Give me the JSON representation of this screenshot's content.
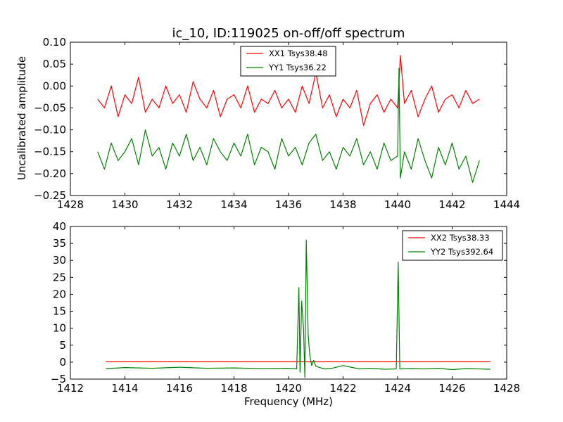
{
  "colors": {
    "xx": "#ff0000",
    "yy": "#008000",
    "axes": "#000000",
    "background": "#ffffff"
  },
  "chart_data": [
    {
      "type": "line",
      "title": "ic_10, ID:119025 on-off/off spectrum",
      "xlabel": "",
      "ylabel": "Uncalibrated amplitude",
      "xlim": [
        1428,
        1444
      ],
      "ylim": [
        -0.25,
        0.1
      ],
      "x_tick_labels": [
        "1428",
        "1430",
        "1432",
        "1434",
        "1436",
        "1438",
        "1440",
        "1442",
        "1444"
      ],
      "y_tick_labels": [
        "−0.25",
        "−0.20",
        "−0.15",
        "−0.10",
        "−0.05",
        "0.00",
        "0.05",
        "0.10"
      ],
      "legend_position": "upper-center",
      "grid": false,
      "series": [
        {
          "name": "XX1 Tsys38.48",
          "color": "#ff0000",
          "x": [
            1429.0,
            1429.25,
            1429.5,
            1429.75,
            1430.0,
            1430.25,
            1430.5,
            1430.75,
            1431.0,
            1431.25,
            1431.5,
            1431.75,
            1432.0,
            1432.25,
            1432.5,
            1432.75,
            1433.0,
            1433.25,
            1433.5,
            1433.75,
            1434.0,
            1434.25,
            1434.5,
            1434.75,
            1435.0,
            1435.25,
            1435.5,
            1435.75,
            1436.0,
            1436.25,
            1436.5,
            1436.75,
            1437.0,
            1437.25,
            1437.5,
            1437.75,
            1438.0,
            1438.25,
            1438.5,
            1438.75,
            1439.0,
            1439.25,
            1439.5,
            1439.75,
            1440.0,
            1440.1,
            1440.25,
            1440.5,
            1440.75,
            1441.0,
            1441.25,
            1441.5,
            1441.75,
            1442.0,
            1442.25,
            1442.5,
            1442.75,
            1443.0
          ],
          "y": [
            -0.03,
            -0.05,
            0.0,
            -0.07,
            -0.02,
            -0.04,
            0.02,
            -0.06,
            -0.03,
            -0.05,
            0.0,
            -0.04,
            -0.02,
            -0.06,
            0.01,
            -0.03,
            -0.05,
            -0.01,
            -0.07,
            -0.03,
            -0.02,
            -0.05,
            0.0,
            -0.06,
            -0.03,
            -0.04,
            -0.01,
            -0.05,
            -0.03,
            -0.06,
            0.0,
            -0.04,
            0.03,
            -0.05,
            -0.02,
            -0.07,
            -0.03,
            -0.05,
            -0.01,
            -0.09,
            -0.04,
            -0.02,
            -0.06,
            -0.03,
            -0.05,
            0.07,
            -0.04,
            -0.01,
            -0.07,
            -0.03,
            0.0,
            -0.06,
            -0.03,
            -0.02,
            -0.05,
            -0.01,
            -0.04,
            -0.03
          ]
        },
        {
          "name": "YY1 Tsys36.22",
          "color": "#008000",
          "x": [
            1429.0,
            1429.25,
            1429.5,
            1429.75,
            1430.0,
            1430.25,
            1430.5,
            1430.75,
            1431.0,
            1431.25,
            1431.5,
            1431.75,
            1432.0,
            1432.25,
            1432.5,
            1432.75,
            1433.0,
            1433.25,
            1433.5,
            1433.75,
            1434.0,
            1434.25,
            1434.5,
            1434.75,
            1435.0,
            1435.25,
            1435.5,
            1435.75,
            1436.0,
            1436.25,
            1436.5,
            1436.75,
            1437.0,
            1437.25,
            1437.5,
            1437.75,
            1438.0,
            1438.25,
            1438.5,
            1438.75,
            1439.0,
            1439.25,
            1439.5,
            1439.75,
            1440.0,
            1440.05,
            1440.1,
            1440.25,
            1440.5,
            1440.75,
            1441.0,
            1441.25,
            1441.5,
            1441.75,
            1442.0,
            1442.25,
            1442.5,
            1442.75,
            1443.0
          ],
          "y": [
            -0.15,
            -0.19,
            -0.13,
            -0.17,
            -0.15,
            -0.12,
            -0.18,
            -0.1,
            -0.16,
            -0.14,
            -0.19,
            -0.13,
            -0.16,
            -0.11,
            -0.17,
            -0.14,
            -0.18,
            -0.12,
            -0.15,
            -0.17,
            -0.13,
            -0.16,
            -0.11,
            -0.18,
            -0.14,
            -0.15,
            -0.19,
            -0.12,
            -0.16,
            -0.14,
            -0.18,
            -0.13,
            -0.11,
            -0.17,
            -0.15,
            -0.19,
            -0.14,
            -0.16,
            -0.12,
            -0.18,
            -0.15,
            -0.19,
            -0.13,
            -0.17,
            -0.16,
            0.04,
            -0.21,
            -0.15,
            -0.19,
            -0.12,
            -0.17,
            -0.21,
            -0.14,
            -0.18,
            -0.13,
            -0.19,
            -0.16,
            -0.22,
            -0.17
          ]
        }
      ]
    },
    {
      "type": "line",
      "title": "",
      "xlabel": "Frequency (MHz)",
      "ylabel": "",
      "xlim": [
        1412,
        1428
      ],
      "ylim": [
        -5,
        40
      ],
      "x_tick_labels": [
        "1412",
        "1414",
        "1416",
        "1418",
        "1420",
        "1422",
        "1424",
        "1426",
        "1428"
      ],
      "y_tick_labels": [
        "−5",
        "0",
        "5",
        "10",
        "15",
        "20",
        "25",
        "30",
        "35",
        "40"
      ],
      "legend_position": "upper-right",
      "grid": false,
      "series": [
        {
          "name": "XX2 Tsys38.33",
          "color": "#ff0000",
          "x": [
            1413.3,
            1415.0,
            1417.0,
            1419.0,
            1420.0,
            1421.0,
            1422.0,
            1424.0,
            1426.0,
            1427.4
          ],
          "y": [
            0.1,
            0.1,
            0.1,
            0.1,
            0.1,
            0.1,
            0.1,
            0.1,
            0.1,
            0.1
          ]
        },
        {
          "name": "YY2 Tsys392.64",
          "color": "#008000",
          "x": [
            1413.3,
            1414.0,
            1415.0,
            1416.0,
            1417.0,
            1418.0,
            1419.0,
            1420.0,
            1420.3,
            1420.38,
            1420.42,
            1420.48,
            1420.55,
            1420.6,
            1420.65,
            1420.72,
            1420.78,
            1420.85,
            1420.92,
            1421.0,
            1421.1,
            1421.3,
            1421.6,
            1422.0,
            1422.3,
            1422.6,
            1423.0,
            1423.5,
            1423.95,
            1424.02,
            1424.08,
            1424.5,
            1425.0,
            1425.5,
            1426.0,
            1426.5,
            1427.0,
            1427.4
          ],
          "y": [
            -1.9,
            -1.6,
            -1.8,
            -1.5,
            -1.8,
            -1.7,
            -1.9,
            -1.8,
            -2.0,
            22.0,
            -3.0,
            18.0,
            10.0,
            -4.5,
            36.0,
            8.0,
            2.0,
            -1.0,
            0.5,
            -1.2,
            -1.5,
            -2.0,
            -1.8,
            -1.0,
            -1.5,
            -2.0,
            -1.8,
            -2.1,
            -2.0,
            29.5,
            -2.0,
            -1.9,
            -2.0,
            -1.8,
            -2.2,
            -1.9,
            -2.0,
            -2.1
          ]
        }
      ]
    }
  ]
}
